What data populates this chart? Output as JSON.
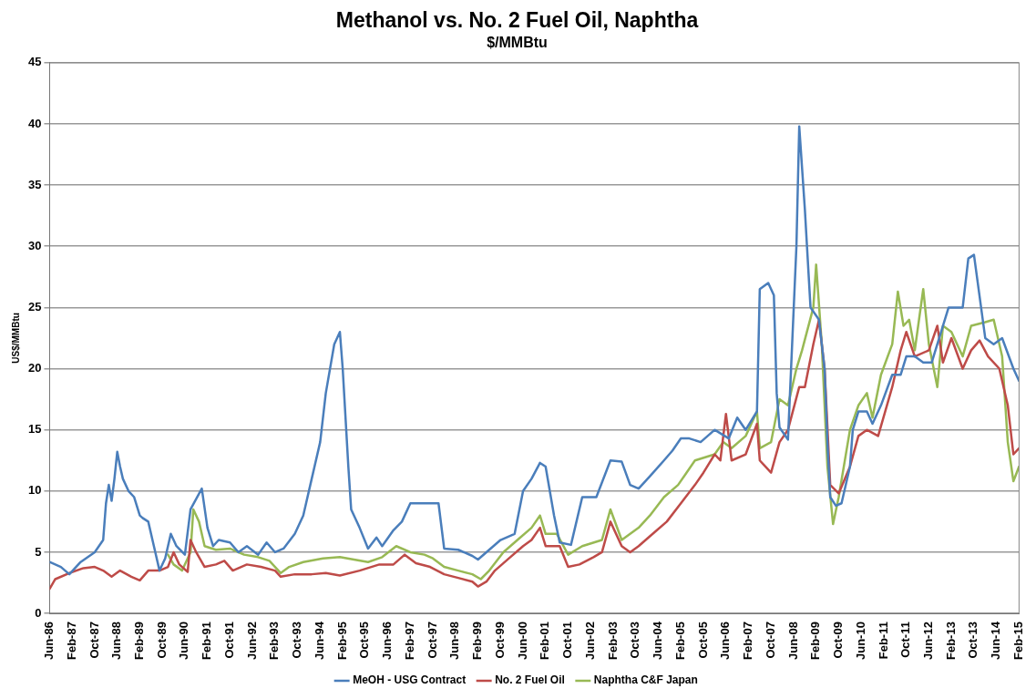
{
  "chart_data": {
    "type": "line",
    "title": "Methanol vs. No. 2 Fuel Oil, Naphtha",
    "subtitle": "$/MMBtu",
    "ylabel": "US$/MMBtu",
    "xlim": [
      "1986-06",
      "2015-02"
    ],
    "xticks": [
      {
        "value": "1986-06",
        "label": "Jun-86"
      },
      {
        "value": "1987-02",
        "label": "Feb-87"
      },
      {
        "value": "1987-10",
        "label": "Oct-87"
      },
      {
        "value": "1988-06",
        "label": "Jun-88"
      },
      {
        "value": "1989-02",
        "label": "Feb-89"
      },
      {
        "value": "1989-10",
        "label": "Oct-89"
      },
      {
        "value": "1990-06",
        "label": "Jun-90"
      },
      {
        "value": "1991-02",
        "label": "Feb-91"
      },
      {
        "value": "1991-10",
        "label": "Oct-91"
      },
      {
        "value": "1992-06",
        "label": "Jun-92"
      },
      {
        "value": "1993-02",
        "label": "Feb-93"
      },
      {
        "value": "1993-10",
        "label": "Oct-93"
      },
      {
        "value": "1994-06",
        "label": "Jun-94"
      },
      {
        "value": "1995-02",
        "label": "Feb-95"
      },
      {
        "value": "1995-10",
        "label": "Oct-95"
      },
      {
        "value": "1996-06",
        "label": "Jun-96"
      },
      {
        "value": "1997-02",
        "label": "Feb-97"
      },
      {
        "value": "1997-10",
        "label": "Oct-97"
      },
      {
        "value": "1998-06",
        "label": "Jun-98"
      },
      {
        "value": "1999-02",
        "label": "Feb-99"
      },
      {
        "value": "1999-10",
        "label": "Oct-99"
      },
      {
        "value": "2000-06",
        "label": "Jun-00"
      },
      {
        "value": "2001-02",
        "label": "Feb-01"
      },
      {
        "value": "2001-10",
        "label": "Oct-01"
      },
      {
        "value": "2002-06",
        "label": "Jun-02"
      },
      {
        "value": "2003-02",
        "label": "Feb-03"
      },
      {
        "value": "2003-10",
        "label": "Oct-03"
      },
      {
        "value": "2004-06",
        "label": "Jun-04"
      },
      {
        "value": "2005-02",
        "label": "Feb-05"
      },
      {
        "value": "2005-10",
        "label": "Oct-05"
      },
      {
        "value": "2006-06",
        "label": "Jun-06"
      },
      {
        "value": "2007-02",
        "label": "Feb-07"
      },
      {
        "value": "2007-10",
        "label": "Oct-07"
      },
      {
        "value": "2008-06",
        "label": "Jun-08"
      },
      {
        "value": "2009-02",
        "label": "Feb-09"
      },
      {
        "value": "2009-10",
        "label": "Oct-09"
      },
      {
        "value": "2010-06",
        "label": "Jun-10"
      },
      {
        "value": "2011-02",
        "label": "Feb-11"
      },
      {
        "value": "2011-10",
        "label": "Oct-11"
      },
      {
        "value": "2012-06",
        "label": "Jun-12"
      },
      {
        "value": "2013-02",
        "label": "Feb-13"
      },
      {
        "value": "2013-10",
        "label": "Oct-13"
      },
      {
        "value": "2014-06",
        "label": "Jun-14"
      },
      {
        "value": "2015-02",
        "label": "Feb-15"
      }
    ],
    "ylim": [
      0,
      45
    ],
    "yticks": [
      0,
      5,
      10,
      15,
      20,
      25,
      30,
      35,
      40,
      45
    ],
    "grid": "y",
    "legend": "bottom",
    "marker": "none",
    "line_style": "solid",
    "series": [
      {
        "name": "MeOH - USG Contract",
        "color": "#4a7ebb",
        "x": [
          "1986-06",
          "1986-10",
          "1987-01",
          "1987-05",
          "1987-10",
          "1988-01",
          "1988-02",
          "1988-03",
          "1988-04",
          "1988-05",
          "1988-06",
          "1988-07",
          "1988-08",
          "1988-10",
          "1988-12",
          "1989-02",
          "1989-03",
          "1989-05",
          "1989-07",
          "1989-09",
          "1989-11",
          "1990-01",
          "1990-03",
          "1990-06",
          "1990-08",
          "1990-12",
          "1991-02",
          "1991-04",
          "1991-06",
          "1991-10",
          "1992-01",
          "1992-04",
          "1992-08",
          "1992-11",
          "1993-02",
          "1993-05",
          "1993-09",
          "1993-12",
          "1994-03",
          "1994-06",
          "1994-08",
          "1994-11",
          "1995-01",
          "1995-02",
          "1995-04",
          "1995-05",
          "1995-08",
          "1995-11",
          "1996-02",
          "1996-04",
          "1996-08",
          "1996-11",
          "1997-02",
          "1997-12",
          "1998-02",
          "1998-07",
          "1998-12",
          "1999-02",
          "1999-06",
          "1999-10",
          "2000-03",
          "2000-06",
          "2000-09",
          "2000-12",
          "2001-02",
          "2001-05",
          "2001-07",
          "2001-11",
          "2002-03",
          "2002-08",
          "2003-01",
          "2003-05",
          "2003-08",
          "2003-11",
          "2004-03",
          "2004-08",
          "2004-11",
          "2005-02",
          "2005-05",
          "2005-09",
          "2006-02",
          "2006-07",
          "2006-10",
          "2007-01",
          "2007-05",
          "2007-06",
          "2007-09",
          "2007-11",
          "2007-12",
          "2008-01",
          "2008-04",
          "2008-07",
          "2008-08",
          "2008-10",
          "2008-12",
          "2009-03",
          "2009-05",
          "2009-06",
          "2009-07",
          "2009-09",
          "2009-11",
          "2010-02",
          "2010-03",
          "2010-05",
          "2010-08",
          "2010-10",
          "2011-01",
          "2011-05",
          "2011-08",
          "2011-10",
          "2012-01",
          "2012-04",
          "2012-07",
          "2012-09",
          "2013-01",
          "2013-06",
          "2013-08",
          "2013-10",
          "2014-02",
          "2014-05",
          "2014-08",
          "2014-12",
          "2015-02"
        ],
        "values": [
          4.2,
          3.8,
          3.2,
          4.2,
          5.0,
          6.0,
          9.0,
          10.5,
          9.2,
          11.0,
          13.2,
          12.0,
          11,
          10,
          9.5,
          8,
          7.8,
          7.5,
          5.5,
          3.5,
          4.5,
          6.5,
          5.5,
          4.8,
          8.5,
          10.2,
          7.0,
          5.5,
          6.0,
          5.8,
          5,
          5.5,
          4.8,
          5.8,
          5,
          5.3,
          6.5,
          8,
          11,
          14,
          18,
          22,
          23,
          20,
          12,
          8.5,
          7,
          5.3,
          6.2,
          5.5,
          6.8,
          7.5,
          9,
          9,
          5.3,
          5.2,
          4.7,
          4.4,
          5.2,
          6.0,
          6.5,
          10,
          11.0,
          12.3,
          12.0,
          8,
          5.8,
          5.6,
          9.5,
          9.5,
          12.5,
          12.4,
          10.5,
          10.2,
          11.2,
          12.5,
          13.3,
          14.3,
          14.3,
          14.0,
          15.0,
          14.3,
          16.0,
          15.0,
          16.5,
          26.5,
          27,
          26,
          18,
          15.2,
          14.2,
          30,
          39.8,
          33,
          25,
          24,
          20,
          14,
          9.5,
          8.8,
          9,
          12,
          15,
          16.5,
          16.5,
          15.5,
          17,
          19.5,
          19.5,
          21,
          21,
          20.5,
          20.5,
          22,
          25,
          25,
          29,
          29.3,
          22.5,
          22,
          22.5,
          20,
          19
        ]
      },
      {
        "name": "No. 2 Fuel Oil",
        "color": "#be4b48",
        "x": [
          "1986-06",
          "1986-08",
          "1987-01",
          "1987-06",
          "1987-10",
          "1988-01",
          "1988-04",
          "1988-07",
          "1988-11",
          "1989-02",
          "1989-05",
          "1989-09",
          "1989-12",
          "1990-02",
          "1990-04",
          "1990-07",
          "1990-08",
          "1990-10",
          "1991-01",
          "1991-05",
          "1991-08",
          "1991-11",
          "1992-04",
          "1992-09",
          "1993-02",
          "1993-04",
          "1993-09",
          "1994-03",
          "1994-08",
          "1995-01",
          "1995-08",
          "1996-03",
          "1996-08",
          "1996-12",
          "1997-04",
          "1997-09",
          "1998-02",
          "1998-07",
          "1998-12",
          "1999-02",
          "1999-05",
          "1999-08",
          "2000-01",
          "2000-06",
          "2000-09",
          "2000-12",
          "2001-02",
          "2001-07",
          "2001-10",
          "2002-02",
          "2002-07",
          "2002-10",
          "2003-01",
          "2003-05",
          "2003-08",
          "2003-11",
          "2004-04",
          "2004-09",
          "2005-02",
          "2005-07",
          "2005-10",
          "2006-02",
          "2006-04",
          "2006-06",
          "2006-08",
          "2007-01",
          "2007-05",
          "2007-06",
          "2007-10",
          "2008-01",
          "2008-04",
          "2008-08",
          "2008-10",
          "2009-01",
          "2009-03",
          "2009-05",
          "2009-07",
          "2009-10",
          "2010-02",
          "2010-05",
          "2010-08",
          "2010-12",
          "2011-05",
          "2011-08",
          "2011-10",
          "2012-01",
          "2012-06",
          "2012-09",
          "2012-11",
          "2013-02",
          "2013-06",
          "2013-09",
          "2013-12",
          "2014-03",
          "2014-07",
          "2014-10",
          "2014-12",
          "2015-02"
        ],
        "values": [
          2.0,
          2.8,
          3.3,
          3.7,
          3.8,
          3.5,
          3.0,
          3.5,
          3.0,
          2.7,
          3.5,
          3.5,
          3.8,
          5.0,
          4.0,
          3.4,
          6.0,
          5.0,
          3.8,
          4.0,
          4.3,
          3.5,
          4.0,
          3.8,
          3.5,
          3.0,
          3.2,
          3.2,
          3.3,
          3.1,
          3.5,
          4.0,
          4.0,
          4.8,
          4.1,
          3.8,
          3.2,
          2.9,
          2.6,
          2.2,
          2.6,
          3.5,
          4.5,
          5.5,
          6.0,
          7.0,
          5.5,
          5.5,
          3.8,
          4.0,
          4.6,
          5.0,
          7.5,
          5.5,
          5.0,
          5.5,
          6.5,
          7.5,
          9.0,
          10.5,
          11.5,
          13.0,
          12.5,
          16.3,
          12.5,
          13.0,
          15.5,
          12.5,
          11.5,
          14.0,
          15.0,
          18.5,
          18.5,
          22.0,
          24.0,
          20,
          10.5,
          9.8,
          12,
          14.5,
          15,
          14.5,
          18.5,
          21.5,
          23.0,
          21,
          21.5,
          23.5,
          20.5,
          22.5,
          20,
          21.5,
          22.3,
          21,
          20,
          17,
          13,
          13.5
        ]
      },
      {
        "name": "Naphtha C&F Japan",
        "color": "#98b954",
        "x": [
          "1989-12",
          "1990-02",
          "1990-05",
          "1990-08",
          "1990-09",
          "1990-11",
          "1991-01",
          "1991-05",
          "1991-10",
          "1992-03",
          "1992-08",
          "1992-12",
          "1993-04",
          "1993-07",
          "1993-12",
          "1994-07",
          "1995-01",
          "1995-06",
          "1995-11",
          "1996-04",
          "1996-09",
          "1997-02",
          "1997-07",
          "1997-10",
          "1998-02",
          "1998-07",
          "1998-12",
          "1999-03",
          "1999-06",
          "1999-11",
          "2000-04",
          "2000-09",
          "2000-12",
          "2001-02",
          "2001-06",
          "2001-10",
          "2002-03",
          "2002-10",
          "2003-01",
          "2003-05",
          "2003-08",
          "2003-11",
          "2004-03",
          "2004-08",
          "2005-01",
          "2005-04",
          "2005-07",
          "2006-02",
          "2006-05",
          "2006-08",
          "2007-01",
          "2007-05",
          "2007-06",
          "2007-10",
          "2008-01",
          "2008-04",
          "2008-07",
          "2008-09",
          "2009-01",
          "2009-02",
          "2009-04",
          "2009-06",
          "2009-08",
          "2009-10",
          "2010-02",
          "2010-05",
          "2010-08",
          "2010-10",
          "2011-01",
          "2011-05",
          "2011-07",
          "2011-09",
          "2011-11",
          "2012-01",
          "2012-04",
          "2012-06",
          "2012-09",
          "2012-11",
          "2013-02",
          "2013-06",
          "2013-09",
          "2014-02",
          "2014-05",
          "2014-08",
          "2014-10",
          "2014-12",
          "2015-02"
        ],
        "values": [
          4.8,
          4.0,
          3.5,
          5,
          8.5,
          7.5,
          5.5,
          5.2,
          5.3,
          4.8,
          4.6,
          4.3,
          3.3,
          3.8,
          4.2,
          4.5,
          4.6,
          4.4,
          4.2,
          4.6,
          5.5,
          5.0,
          4.8,
          4.5,
          3.8,
          3.5,
          3.2,
          2.8,
          3.5,
          5.0,
          6.0,
          7.0,
          8.0,
          6.5,
          6.5,
          4.8,
          5.5,
          6.0,
          8.5,
          6.0,
          6.5,
          7.0,
          8.0,
          9.5,
          10.5,
          11.5,
          12.5,
          13.0,
          14.0,
          13.5,
          14.5,
          16.5,
          13.5,
          14.0,
          17.5,
          17.0,
          20.0,
          21.5,
          25,
          28.5,
          22,
          12,
          7.3,
          9.5,
          15,
          17,
          18,
          16,
          19.5,
          22,
          26.3,
          23.5,
          24,
          21.5,
          26.5,
          22,
          18.5,
          23.5,
          23,
          21,
          23.5,
          23.8,
          24,
          21,
          14,
          10.8,
          12
        ]
      }
    ]
  }
}
